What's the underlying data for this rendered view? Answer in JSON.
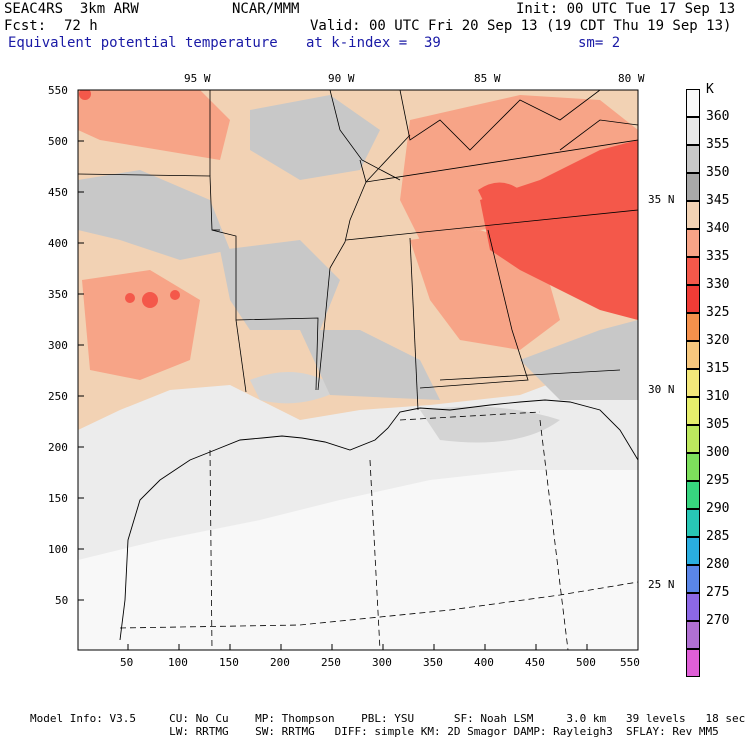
{
  "header": {
    "model": "SEAC4RS  3km ARW",
    "org": "NCAR/MMM",
    "init": "Init: 00 UTC Tue 17 Sep 13",
    "fcst_label": "Fcst:",
    "fcst_value": "72 h",
    "valid": "Valid: 00 UTC Fri 20 Sep 13 (19 CDT Thu 19 Sep 13)",
    "field": "Equivalent potential temperature",
    "level": "at k-index =  39",
    "smooth": "sm= 2"
  },
  "map": {
    "lon_labels": [
      "95 W",
      "90 W",
      "85 W",
      "80 W"
    ],
    "lat_labels": [
      "35 N",
      "30 N",
      "25 N"
    ],
    "x_ticks": [
      "50",
      "100",
      "150",
      "200",
      "250",
      "300",
      "350",
      "400",
      "450",
      "500",
      "550"
    ],
    "y_ticks": [
      "550",
      "500",
      "450",
      "400",
      "350",
      "300",
      "250",
      "200",
      "150",
      "100",
      "50"
    ]
  },
  "legend": {
    "unit": "K",
    "levels": [
      {
        "label": "360",
        "color": "#fafafa"
      },
      {
        "label": "355",
        "color": "#e8e8e8"
      },
      {
        "label": "350",
        "color": "#c8c8c8"
      },
      {
        "label": "345",
        "color": "#a8a8a8"
      },
      {
        "label": "340",
        "color": "#f2d2b4"
      },
      {
        "label": "335",
        "color": "#f7a487"
      },
      {
        "label": "330",
        "color": "#f4584a"
      },
      {
        "label": "325",
        "color": "#f03c36"
      },
      {
        "label": "320",
        "color": "#f5914c"
      },
      {
        "label": "315",
        "color": "#f7c77d"
      },
      {
        "label": "310",
        "color": "#f3e77a"
      },
      {
        "label": "305",
        "color": "#e6ee6c"
      },
      {
        "label": "300",
        "color": "#bde85e"
      },
      {
        "label": "295",
        "color": "#7ddf5c"
      },
      {
        "label": "290",
        "color": "#37d47f"
      },
      {
        "label": "285",
        "color": "#28c7b5"
      },
      {
        "label": "280",
        "color": "#2aaee0"
      },
      {
        "label": "275",
        "color": "#5a86e8"
      },
      {
        "label": "270",
        "color": "#8c68e6"
      },
      {
        "label": "",
        "color": "#b070d2"
      },
      {
        "label": "",
        "color": "#df5fd7"
      }
    ]
  },
  "footer": {
    "line1": "Model Info: V3.5     CU: No Cu    MP: Thompson    PBL: YSU      SF: Noah LSM     3.0 km   39 levels   18 sec",
    "line2": "                     LW: RRTMG    SW: RRTMG   DIFF: simple KM: 2D Smagor DAMP: Rayleigh3  SFLAY: Rev MM5"
  }
}
